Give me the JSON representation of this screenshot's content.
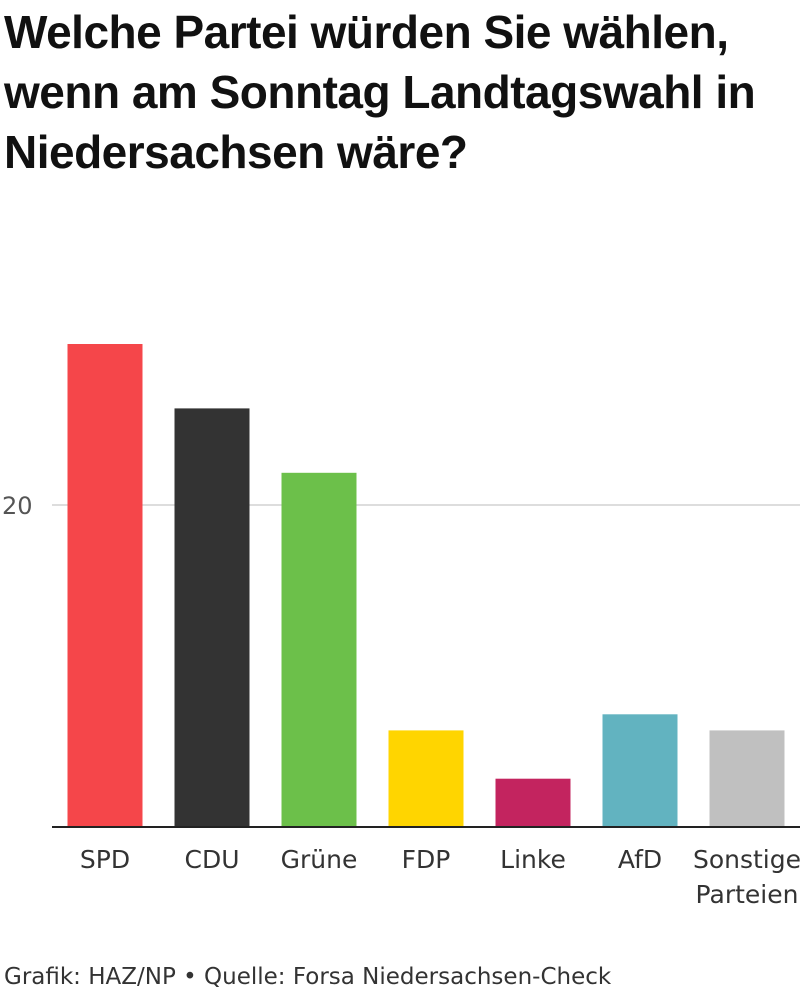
{
  "chart_data": {
    "type": "bar",
    "title": "Welche Partei würden Sie wählen, wenn am Sonntag Landtagswahl in Niedersachsen wäre?",
    "categories": [
      [
        "SPD"
      ],
      [
        "CDU"
      ],
      [
        "Grüne"
      ],
      [
        "FDP"
      ],
      [
        "Linke"
      ],
      [
        "AfD"
      ],
      [
        "Sonstige",
        "Parteien"
      ]
    ],
    "values": [
      30,
      26,
      22,
      6,
      3,
      7,
      6
    ],
    "colors": [
      "#f5464a",
      "#333333",
      "#6cc04a",
      "#ffd500",
      "#c3245f",
      "#62b3c0",
      "#c0c0c0"
    ],
    "yticks": [
      20
    ],
    "ylim": [
      0,
      32
    ],
    "grid": true
  },
  "footer": "Grafik: HAZ/NP • Quelle: Forsa Niedersachsen-Check"
}
